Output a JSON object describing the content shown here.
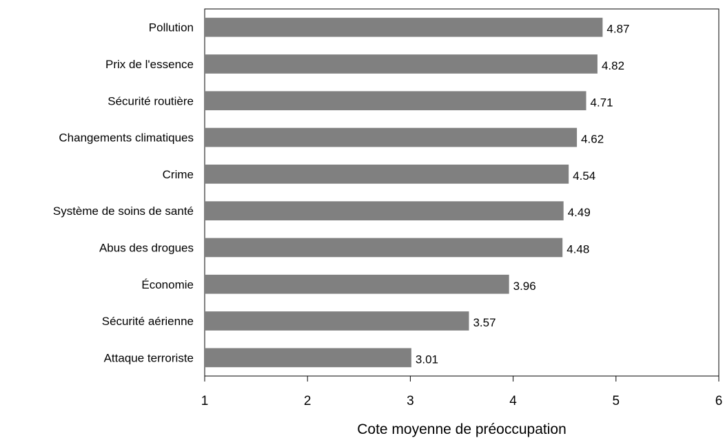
{
  "chart_data": {
    "type": "bar",
    "orientation": "horizontal",
    "title": "",
    "xlabel": "Cote moyenne de préoccupation",
    "ylabel": "",
    "categories": [
      "Pollution",
      "Prix de l'essence",
      "Sécurité routière",
      "Changements climatiques",
      "Crime",
      "Système de soins de santé",
      "Abus des drogues",
      "Économie",
      "Sécurité aérienne",
      "Attaque terroriste"
    ],
    "values": [
      4.87,
      4.82,
      4.71,
      4.62,
      4.54,
      4.49,
      4.48,
      3.96,
      3.57,
      3.01
    ],
    "value_labels": [
      "4.87",
      "4.82",
      "4.71",
      "4.62",
      "4.54",
      "4.49",
      "4.48",
      "3.96",
      "3.57",
      "3.01"
    ],
    "xlim": [
      1,
      6
    ],
    "xticks": [
      1,
      2,
      3,
      4,
      5,
      6
    ],
    "xtick_labels": [
      "1",
      "2",
      "3",
      "4",
      "5",
      "6"
    ],
    "grid": false,
    "legend": "none",
    "bar_color": "#808080"
  }
}
